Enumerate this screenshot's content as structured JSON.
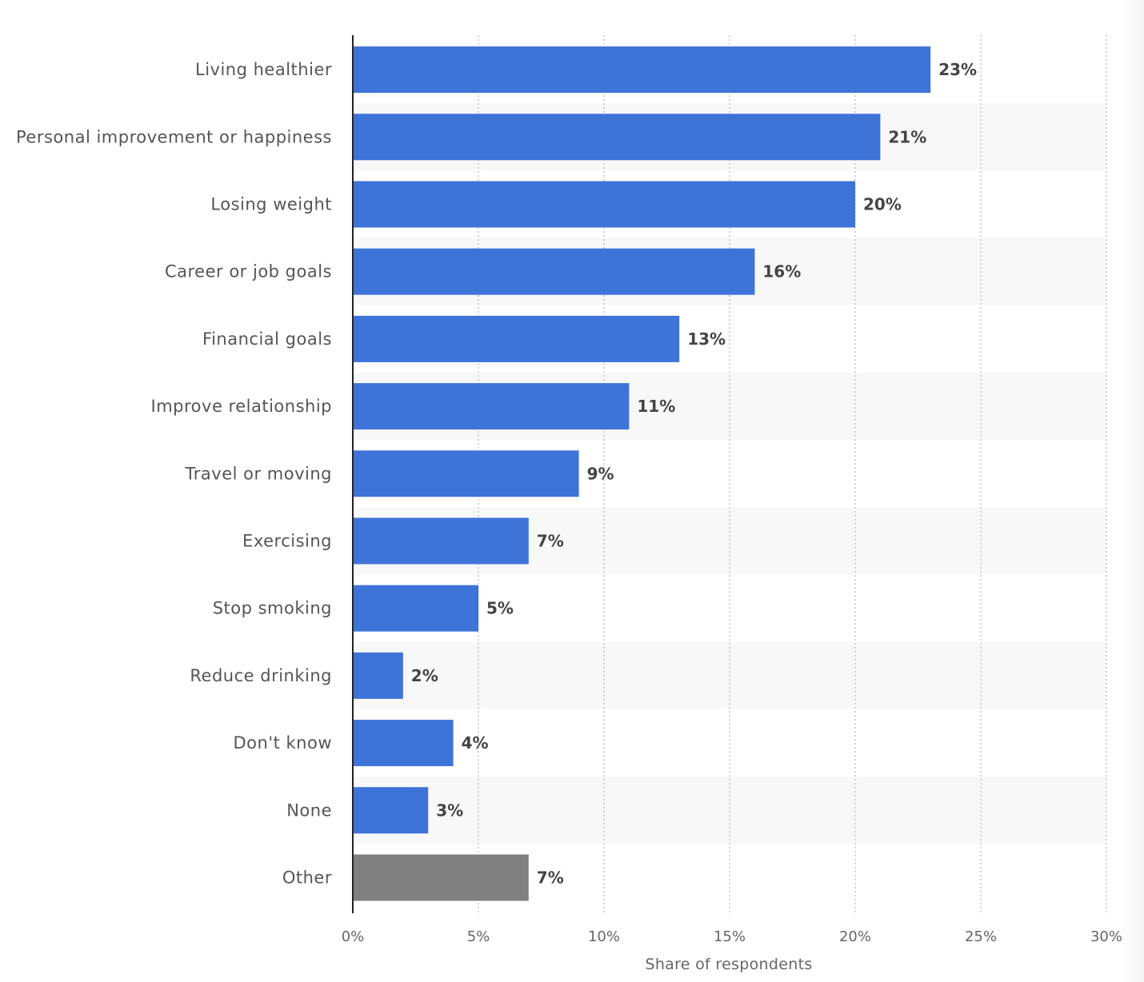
{
  "chart_data": {
    "type": "bar",
    "orientation": "horizontal",
    "categories": [
      "Living healthier",
      "Personal improvement or happiness",
      "Losing weight",
      "Career or job goals",
      "Financial goals",
      "Improve relationship",
      "Travel or moving",
      "Exercising",
      "Stop smoking",
      "Reduce drinking",
      "Don't know",
      "None",
      "Other"
    ],
    "values": [
      23,
      21,
      20,
      16,
      13,
      11,
      9,
      7,
      5,
      2,
      4,
      3,
      7
    ],
    "value_labels": [
      "23%",
      "21%",
      "20%",
      "16%",
      "13%",
      "11%",
      "9%",
      "7%",
      "5%",
      "2%",
      "4%",
      "3%",
      "7%"
    ],
    "xlabel": "Share of respondents",
    "ylabel": "",
    "xlim": [
      0,
      30
    ],
    "xticks": [
      0,
      5,
      10,
      15,
      20,
      25,
      30
    ],
    "xtick_labels": [
      "0%",
      "5%",
      "10%",
      "15%",
      "20%",
      "25%",
      "30%"
    ],
    "grid": "vertical dotted",
    "legend": "none",
    "colors": {
      "bar": "#3e73d8",
      "other_bar": "#808080",
      "band": "#f8f8f8"
    }
  }
}
